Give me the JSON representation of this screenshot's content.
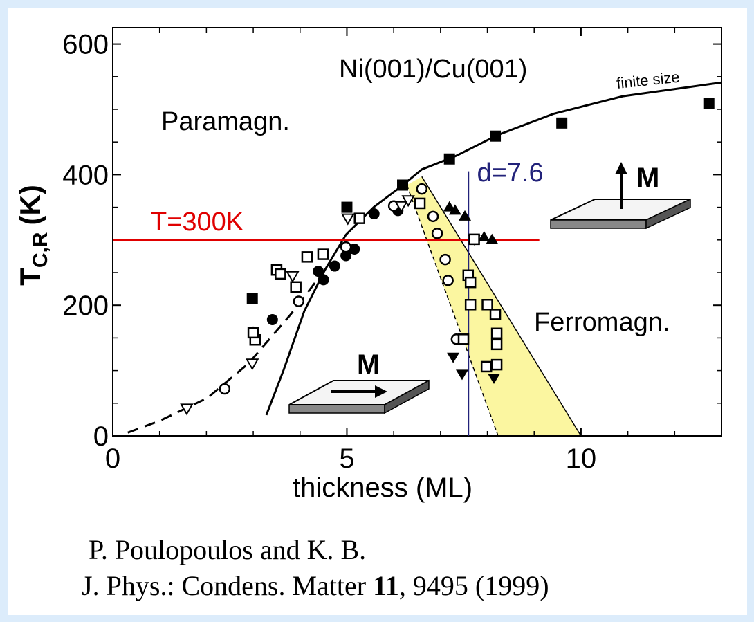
{
  "chart_data": {
    "type": "scatter",
    "xlabel": "thickness (ML)",
    "ylabel": {
      "main": "T",
      "sub": "C,R",
      "unit": "(K)"
    },
    "xlim": [
      0,
      13
    ],
    "ylim": [
      0,
      625
    ],
    "xticks": [
      0,
      5,
      10
    ],
    "yticks": [
      0,
      200,
      400,
      600
    ],
    "annotations": [
      "Ni(001)/Cu(001)",
      "finite size",
      "Paramagn.",
      "Ferromagn.",
      "M",
      "M"
    ],
    "reference_lines": [
      {
        "axis": "y",
        "value": 300,
        "end": 9.11,
        "label": "T=300K",
        "color": "#e00000"
      },
      {
        "axis": "x",
        "value": 7.6,
        "label": "d=7.6",
        "color": "#22227a"
      }
    ],
    "band": {
      "color": "#fbf6a0",
      "x": [
        6.28,
        6.6,
        10,
        8.23
      ],
      "y": [
        384,
        397,
        0,
        0
      ]
    },
    "curves": [
      {
        "dash": false,
        "x": [
          3.28,
          3.65,
          4.09,
          4.53,
          4.98,
          5.57,
          6.16,
          6.6,
          7.34,
          8.23,
          9.41,
          10.89,
          13
        ],
        "y": [
          32,
          101,
          191,
          254,
          308,
          350,
          382,
          408,
          429,
          461,
          493,
          520,
          541
        ]
      },
      {
        "dash": true,
        "x": [
          0.32,
          1,
          2.02,
          2.9,
          3.8,
          4.53
        ],
        "y": [
          5,
          23,
          58,
          111,
          186,
          254
        ]
      }
    ],
    "series": [
      {
        "marker": "filled-square",
        "x": [
          2.98,
          5.0,
          6.19,
          7.19,
          8.17,
          9.59,
          12.73
        ],
        "values": [
          210,
          350,
          384,
          424,
          459,
          479,
          509
        ]
      },
      {
        "marker": "filled-circle",
        "x": [
          3.0,
          3.41,
          4.39,
          4.5,
          4.74,
          4.98,
          5.16,
          5.58,
          6.09
        ],
        "values": [
          159,
          178,
          252,
          239,
          260,
          276,
          286,
          340,
          345
        ]
      },
      {
        "marker": "open-circle",
        "x": [
          2.39,
          3.97,
          4.98,
          6.0,
          6.6,
          6.84,
          6.93,
          7.1,
          7.16,
          7.34
        ],
        "values": [
          72,
          206,
          289,
          352,
          378,
          336,
          310,
          270,
          238,
          148
        ]
      },
      {
        "marker": "open-down-triangle",
        "x": [
          1.58,
          2.98,
          3.84,
          5.02,
          6.16,
          6.31
        ],
        "values": [
          42,
          111,
          245,
          333,
          352,
          361
        ]
      },
      {
        "marker": "filled-down-triangle",
        "x": [
          7.72,
          7.27,
          7.46,
          8.14
        ],
        "values": [
          301,
          121,
          95,
          89
        ]
      },
      {
        "marker": "filled-up-triangle",
        "x": [
          7.19,
          7.31,
          7.52,
          7.93,
          8.1
        ],
        "values": [
          350,
          345,
          336,
          304,
          300
        ]
      },
      {
        "marker": "open-square",
        "x": [
          3.04,
          3.0,
          3.5,
          3.58,
          3.91,
          4.15,
          4.49,
          5.27,
          6.56,
          7.72,
          7.59,
          7.64,
          7.64,
          7.49,
          8.0,
          8.17,
          8.2,
          8.2,
          8.2,
          7.98
        ],
        "values": [
          147,
          158,
          254,
          248,
          228,
          274,
          278,
          333,
          356,
          301,
          246,
          235,
          201,
          148,
          201,
          186,
          157,
          140,
          109,
          106
        ]
      }
    ],
    "citation": {
      "line1": "P. Poulopoulos and K. B.",
      "line2_pre": "J. Phys.: Condens. Matter ",
      "volume": "11",
      "line2_post": ", 9495 (1999)"
    }
  }
}
